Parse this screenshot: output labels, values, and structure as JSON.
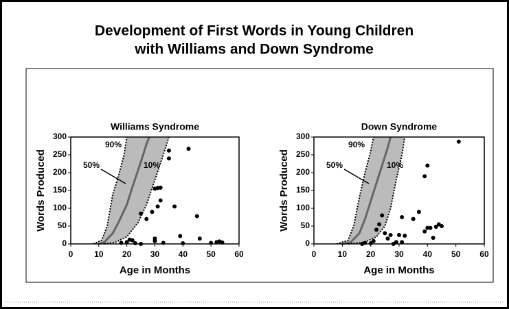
{
  "title": [
    "Development of First Words in Young Children",
    "with Williams and Down Syndrome"
  ],
  "chart_data": [
    {
      "type": "scatter",
      "title": "Williams Syndrome",
      "x_label": "Age in Months",
      "y_label": "Words Produced",
      "xlim": [
        0,
        60
      ],
      "xticks": [
        0,
        10,
        20,
        30,
        40,
        50,
        60
      ],
      "ylim": [
        0,
        300
      ],
      "yticks": [
        0,
        50,
        100,
        150,
        200,
        250,
        300
      ],
      "band_color": "#bbbbbb",
      "series": [
        {
          "mode": "markers",
          "color": "#000000",
          "x": [
            35,
            35,
            42,
            31,
            32,
            30,
            32,
            31,
            37,
            27,
            29,
            25,
            45,
            39,
            46,
            20,
            22,
            18,
            23,
            30,
            33,
            40,
            52,
            53,
            54,
            50,
            30,
            21,
            25
          ],
          "values": [
            262,
            240,
            267,
            157,
            158,
            155,
            122,
            105,
            105,
            70,
            90,
            85,
            78,
            22,
            15,
            5,
            10,
            3,
            2,
            8,
            3,
            2,
            5,
            7,
            4,
            3,
            15,
            12,
            0
          ]
        },
        {
          "name": "90%",
          "mode": "line",
          "dash": true,
          "color": "#000000",
          "x": [
            8,
            11,
            13,
            15,
            17,
            19,
            20
          ],
          "values": [
            0,
            10,
            50,
            140,
            190,
            250,
            300
          ]
        },
        {
          "name": "50%",
          "mode": "line",
          "dash": false,
          "color": "#666666",
          "x": [
            10,
            12,
            15,
            17,
            20,
            22,
            25,
            27,
            28
          ],
          "values": [
            0,
            5,
            30,
            60,
            110,
            160,
            230,
            280,
            300
          ]
        },
        {
          "name": "10%",
          "mode": "line",
          "dash": true,
          "color": "#000000",
          "x": [
            12,
            16,
            20,
            24,
            27,
            30,
            33,
            35
          ],
          "values": [
            0,
            5,
            20,
            60,
            110,
            180,
            250,
            300
          ]
        }
      ]
    },
    {
      "type": "scatter",
      "title": "Down Syndrome",
      "x_label": "Age in Months",
      "y_label": "Words Produced",
      "xlim": [
        0,
        60
      ],
      "xticks": [
        0,
        10,
        20,
        30,
        40,
        50,
        60
      ],
      "ylim": [
        0,
        300
      ],
      "yticks": [
        0,
        50,
        100,
        150,
        200,
        250,
        300
      ],
      "band_color": "#bbbbbb",
      "series": [
        {
          "mode": "markers",
          "color": "#000000",
          "x": [
            51,
            40,
            39,
            31,
            35,
            37,
            40,
            41,
            43,
            44,
            45,
            42,
            39,
            22,
            23,
            24,
            25,
            26,
            27,
            29,
            30,
            31,
            32,
            20,
            17,
            18,
            21,
            28
          ],
          "values": [
            287,
            220,
            190,
            75,
            70,
            90,
            45,
            45,
            48,
            55,
            50,
            17,
            35,
            40,
            55,
            80,
            30,
            15,
            25,
            5,
            25,
            5,
            23,
            2,
            0,
            3,
            8,
            0
          ]
        },
        {
          "name": "90%",
          "mode": "line",
          "dash": true,
          "color": "#000000",
          "x": [
            8,
            12,
            14,
            16,
            18,
            20,
            21
          ],
          "values": [
            0,
            10,
            50,
            130,
            200,
            260,
            300
          ]
        },
        {
          "name": "50%",
          "mode": "line",
          "dash": false,
          "color": "#666666",
          "x": [
            10,
            13,
            16,
            18,
            20,
            22,
            24,
            26,
            27
          ],
          "values": [
            0,
            5,
            30,
            70,
            120,
            170,
            220,
            270,
            300
          ]
        },
        {
          "name": "10%",
          "mode": "line",
          "dash": true,
          "color": "#000000",
          "x": [
            12,
            18,
            22,
            25,
            27,
            29,
            31,
            32
          ],
          "values": [
            0,
            5,
            20,
            50,
            100,
            180,
            250,
            300
          ]
        }
      ]
    }
  ]
}
